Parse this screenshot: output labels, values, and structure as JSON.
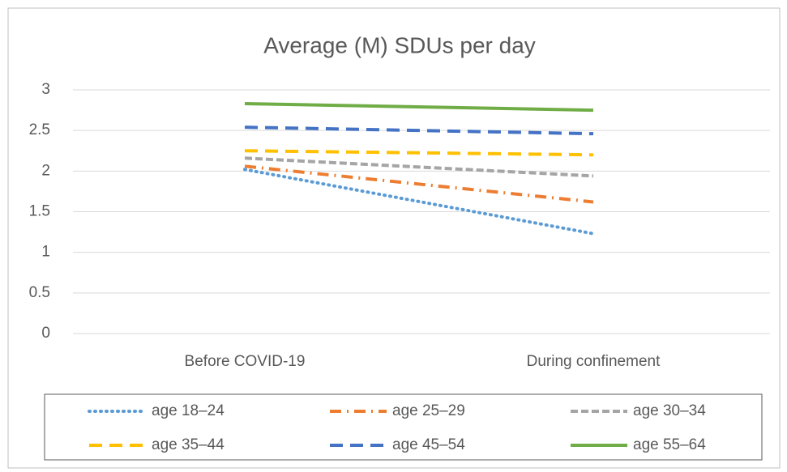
{
  "chart_data": {
    "type": "line",
    "title": "Average (M) SDUs per day",
    "categories": [
      "Before COVID-19",
      "During confinement"
    ],
    "series": [
      {
        "name": "age 18–24",
        "color": "#5b9bd5",
        "dash": "dot",
        "values": [
          2.02,
          1.23
        ]
      },
      {
        "name": "age 25–29",
        "color": "#ed7d31",
        "dash": "dashdot",
        "values": [
          2.06,
          1.62
        ]
      },
      {
        "name": "age 30–34",
        "color": "#a5a5a5",
        "dash": "dash",
        "values": [
          2.16,
          1.94
        ]
      },
      {
        "name": "age 35–44",
        "color": "#ffc000",
        "dash": "longdash",
        "values": [
          2.25,
          2.2
        ]
      },
      {
        "name": "age 45–54",
        "color": "#4472c4",
        "dash": "longdash",
        "values": [
          2.54,
          2.46
        ]
      },
      {
        "name": "age 55–64",
        "color": "#70ad47",
        "dash": "solid",
        "values": [
          2.83,
          2.75
        ]
      }
    ],
    "ylim": [
      0,
      3
    ],
    "yticks": [
      0,
      0.5,
      1,
      1.5,
      2,
      2.5,
      3
    ],
    "grid": true,
    "legend": "bottom"
  }
}
